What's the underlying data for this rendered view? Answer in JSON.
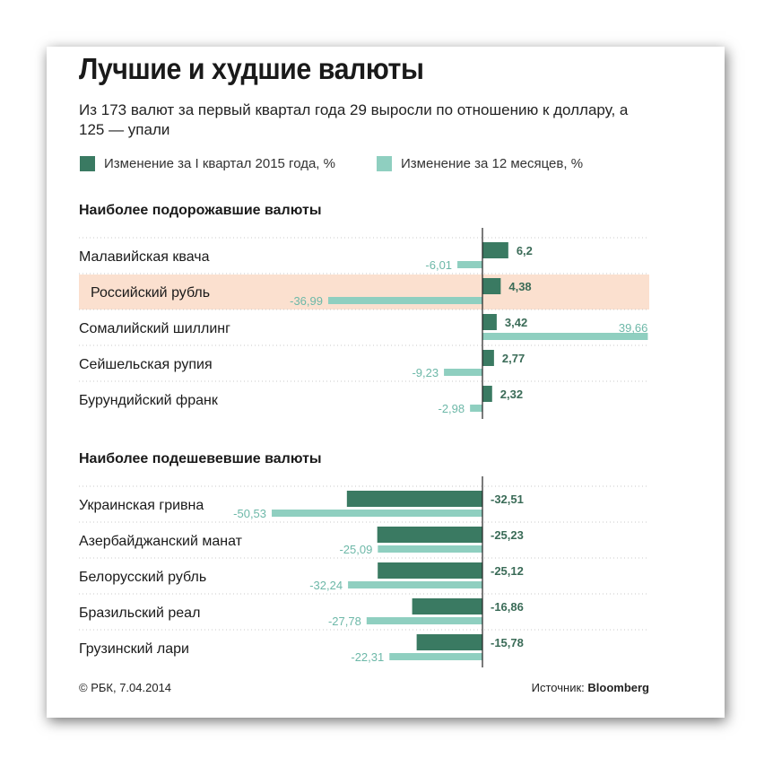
{
  "title": "Лучшие и худшие валюты",
  "subtitle": "Из 173 валют за первый квартал года 29 выросли по отношению к доллару, а 125 — упали",
  "legend": {
    "q1": "Изменение за I квартал 2015 года, %",
    "m12": "Изменение за 12 месяцев, %"
  },
  "colors": {
    "q1": "#3a7a62",
    "m12": "#8fcfc0",
    "highlight": "#fbe0cf",
    "label_q1": "#3a6b57",
    "label_m12": "#6db8a8"
  },
  "footer": {
    "copyright": "© РБК, 7.04.2014",
    "source_label": "Источник: ",
    "source_name": "Bloomberg"
  },
  "chart_data": {
    "type": "bar",
    "orientation": "horizontal",
    "series": [
      {
        "key": "q1",
        "name": "Изменение за I квартал 2015 года, %"
      },
      {
        "key": "m12",
        "name": "Изменение за 12 месяцев, %"
      }
    ],
    "groups": [
      {
        "title": "Наиболее подорожавшие валюты",
        "rows": [
          {
            "label": "Малавийская квача",
            "q1": 6.2,
            "q1_text": "6,2",
            "m12": -6.01,
            "m12_text": "-6,01"
          },
          {
            "label": "Российский рубль",
            "q1": 4.38,
            "q1_text": "4,38",
            "m12": -36.99,
            "m12_text": "-36,99",
            "highlight": true
          },
          {
            "label": "Сомалийский шиллинг",
            "q1": 3.42,
            "q1_text": "3,42",
            "m12": 39.66,
            "m12_text": "39,66"
          },
          {
            "label": "Сейшельская рупия",
            "q1": 2.77,
            "q1_text": "2,77",
            "m12": -9.23,
            "m12_text": "-9,23"
          },
          {
            "label": "Бурундийский франк",
            "q1": 2.32,
            "q1_text": "2,32",
            "m12": -2.98,
            "m12_text": "-2,98"
          }
        ]
      },
      {
        "title": "Наиболее подешевевшие валюты",
        "rows": [
          {
            "label": "Украинская гривна",
            "q1": -32.51,
            "q1_text": "-32,51",
            "m12": -50.53,
            "m12_text": "-50,53"
          },
          {
            "label": "Азербайджанский манат",
            "q1": -25.23,
            "q1_text": "-25,23",
            "m12": -25.09,
            "m12_text": "-25,09"
          },
          {
            "label": "Белорусский рубль",
            "q1": -25.12,
            "q1_text": "-25,12",
            "m12": -32.24,
            "m12_text": "-32,24"
          },
          {
            "label": "Бразильский реал",
            "q1": -16.86,
            "q1_text": "-16,86",
            "m12": -27.78,
            "m12_text": "-27,78"
          },
          {
            "label": "Грузинский лари",
            "q1": -15.78,
            "q1_text": "-15,78",
            "m12": -22.31,
            "m12_text": "-22,31"
          }
        ]
      }
    ]
  }
}
